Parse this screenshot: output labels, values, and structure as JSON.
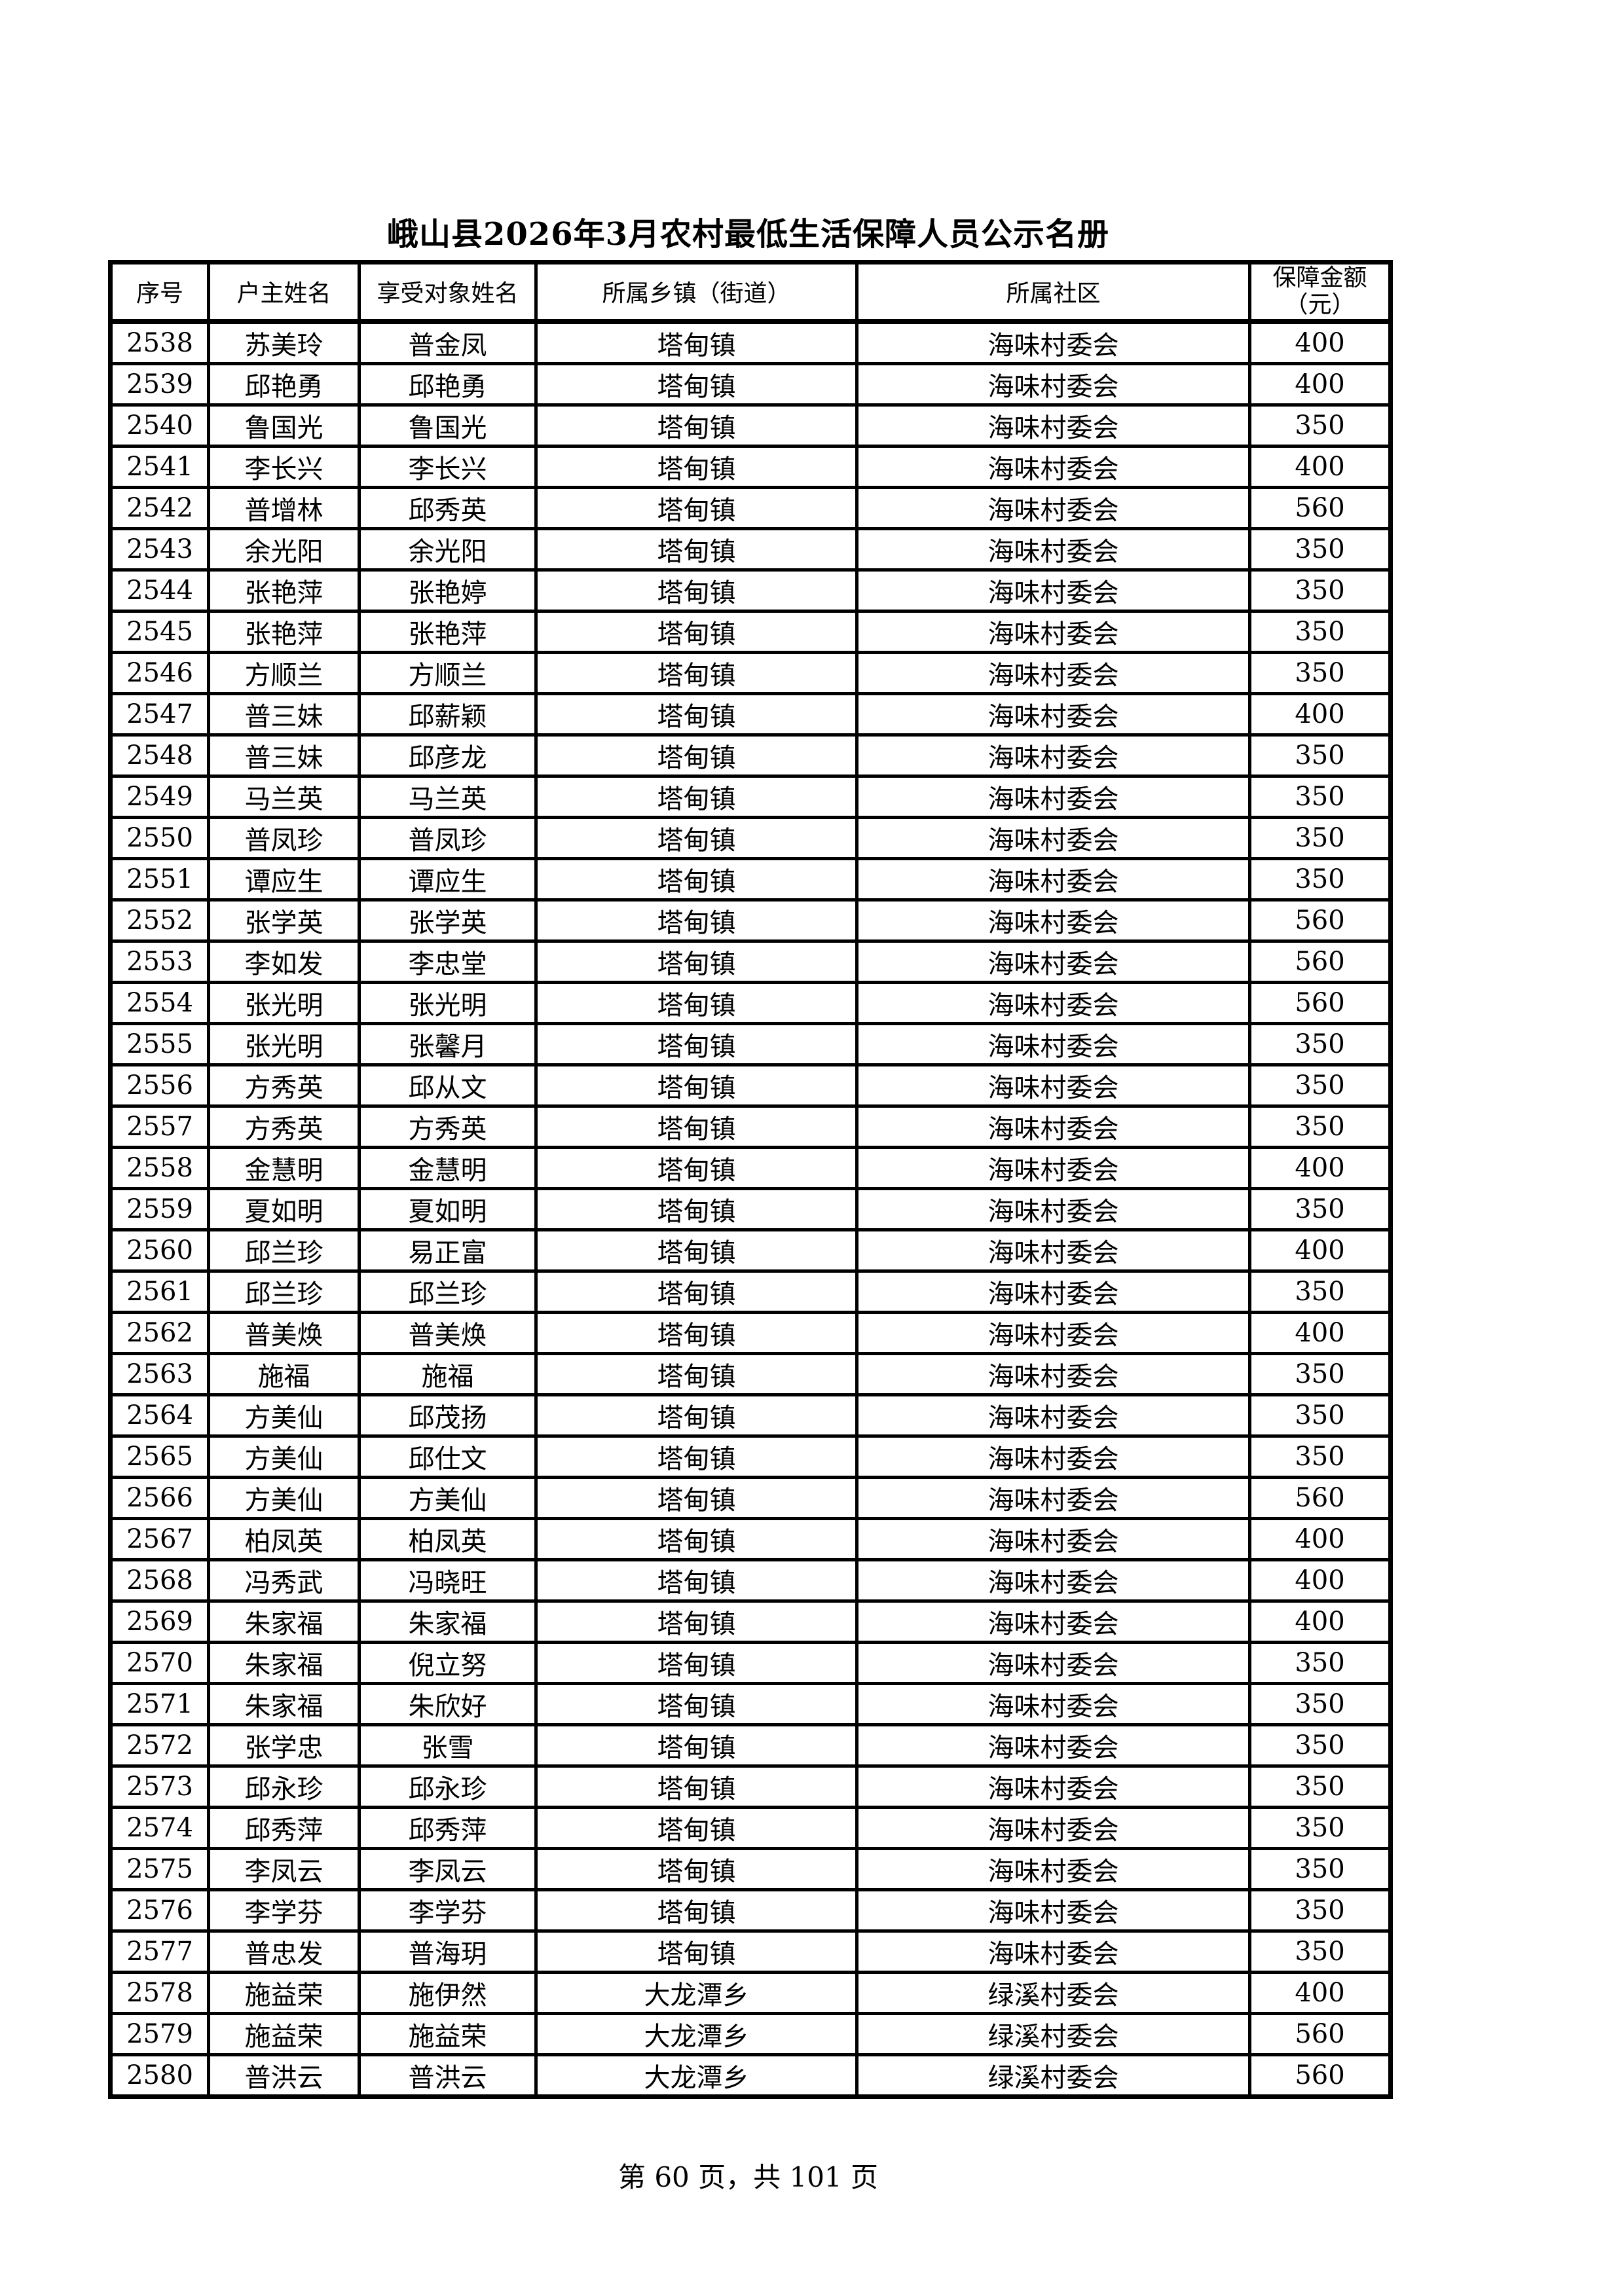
{
  "page": {
    "title": "峨山县2026年3月农村最低生活保障人员公示名册",
    "footer": "第 60 页，共 101 页"
  },
  "table": {
    "headers": {
      "serial": "序号",
      "head_name": "户主姓名",
      "beneficiary_name": "享受对象姓名",
      "township": "所属乡镇（街道）",
      "community": "所属社区",
      "amount_line1": "保障金额",
      "amount_line2": "（元）"
    },
    "rows": [
      [
        2538,
        "苏美玲",
        "普金凤",
        "塔甸镇",
        "海味村委会",
        400
      ],
      [
        2539,
        "邱艳勇",
        "邱艳勇",
        "塔甸镇",
        "海味村委会",
        400
      ],
      [
        2540,
        "鲁国光",
        "鲁国光",
        "塔甸镇",
        "海味村委会",
        350
      ],
      [
        2541,
        "李长兴",
        "李长兴",
        "塔甸镇",
        "海味村委会",
        400
      ],
      [
        2542,
        "普增林",
        "邱秀英",
        "塔甸镇",
        "海味村委会",
        560
      ],
      [
        2543,
        "余光阳",
        "余光阳",
        "塔甸镇",
        "海味村委会",
        350
      ],
      [
        2544,
        "张艳萍",
        "张艳婷",
        "塔甸镇",
        "海味村委会",
        350
      ],
      [
        2545,
        "张艳萍",
        "张艳萍",
        "塔甸镇",
        "海味村委会",
        350
      ],
      [
        2546,
        "方顺兰",
        "方顺兰",
        "塔甸镇",
        "海味村委会",
        350
      ],
      [
        2547,
        "普三妹",
        "邱薪颖",
        "塔甸镇",
        "海味村委会",
        400
      ],
      [
        2548,
        "普三妹",
        "邱彦龙",
        "塔甸镇",
        "海味村委会",
        350
      ],
      [
        2549,
        "马兰英",
        "马兰英",
        "塔甸镇",
        "海味村委会",
        350
      ],
      [
        2550,
        "普凤珍",
        "普凤珍",
        "塔甸镇",
        "海味村委会",
        350
      ],
      [
        2551,
        "谭应生",
        "谭应生",
        "塔甸镇",
        "海味村委会",
        350
      ],
      [
        2552,
        "张学英",
        "张学英",
        "塔甸镇",
        "海味村委会",
        560
      ],
      [
        2553,
        "李如发",
        "李忠堂",
        "塔甸镇",
        "海味村委会",
        560
      ],
      [
        2554,
        "张光明",
        "张光明",
        "塔甸镇",
        "海味村委会",
        560
      ],
      [
        2555,
        "张光明",
        "张馨月",
        "塔甸镇",
        "海味村委会",
        350
      ],
      [
        2556,
        "方秀英",
        "邱从文",
        "塔甸镇",
        "海味村委会",
        350
      ],
      [
        2557,
        "方秀英",
        "方秀英",
        "塔甸镇",
        "海味村委会",
        350
      ],
      [
        2558,
        "金慧明",
        "金慧明",
        "塔甸镇",
        "海味村委会",
        400
      ],
      [
        2559,
        "夏如明",
        "夏如明",
        "塔甸镇",
        "海味村委会",
        350
      ],
      [
        2560,
        "邱兰珍",
        "易正富",
        "塔甸镇",
        "海味村委会",
        400
      ],
      [
        2561,
        "邱兰珍",
        "邱兰珍",
        "塔甸镇",
        "海味村委会",
        350
      ],
      [
        2562,
        "普美焕",
        "普美焕",
        "塔甸镇",
        "海味村委会",
        400
      ],
      [
        2563,
        "施福",
        "施福",
        "塔甸镇",
        "海味村委会",
        350
      ],
      [
        2564,
        "方美仙",
        "邱茂扬",
        "塔甸镇",
        "海味村委会",
        350
      ],
      [
        2565,
        "方美仙",
        "邱仕文",
        "塔甸镇",
        "海味村委会",
        350
      ],
      [
        2566,
        "方美仙",
        "方美仙",
        "塔甸镇",
        "海味村委会",
        560
      ],
      [
        2567,
        "柏凤英",
        "柏凤英",
        "塔甸镇",
        "海味村委会",
        400
      ],
      [
        2568,
        "冯秀武",
        "冯晓旺",
        "塔甸镇",
        "海味村委会",
        400
      ],
      [
        2569,
        "朱家福",
        "朱家福",
        "塔甸镇",
        "海味村委会",
        400
      ],
      [
        2570,
        "朱家福",
        "倪立努",
        "塔甸镇",
        "海味村委会",
        350
      ],
      [
        2571,
        "朱家福",
        "朱欣好",
        "塔甸镇",
        "海味村委会",
        350
      ],
      [
        2572,
        "张学忠",
        "张雪",
        "塔甸镇",
        "海味村委会",
        350
      ],
      [
        2573,
        "邱永珍",
        "邱永珍",
        "塔甸镇",
        "海味村委会",
        350
      ],
      [
        2574,
        "邱秀萍",
        "邱秀萍",
        "塔甸镇",
        "海味村委会",
        350
      ],
      [
        2575,
        "李凤云",
        "李凤云",
        "塔甸镇",
        "海味村委会",
        350
      ],
      [
        2576,
        "李学芬",
        "李学芬",
        "塔甸镇",
        "海味村委会",
        350
      ],
      [
        2577,
        "普忠发",
        "普海玥",
        "塔甸镇",
        "海味村委会",
        350
      ],
      [
        2578,
        "施益荣",
        "施伊然",
        "大龙潭乡",
        "绿溪村委会",
        400
      ],
      [
        2579,
        "施益荣",
        "施益荣",
        "大龙潭乡",
        "绿溪村委会",
        560
      ],
      [
        2580,
        "普洪云",
        "普洪云",
        "大龙潭乡",
        "绿溪村委会",
        560
      ]
    ]
  }
}
